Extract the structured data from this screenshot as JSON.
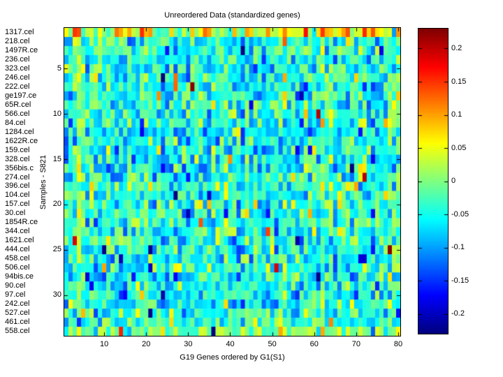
{
  "chart_data": {
    "type": "heatmap",
    "title": "Unreordered Data (standardized genes)",
    "xlabel": "G19 Genes ordered by G1(S1)",
    "ylabel": "Samples - S821",
    "rows": 34,
    "cols": 80,
    "row_labels": [
      "1317.cel",
      "218.cel",
      "1497R.ce",
      "236.cel",
      "323.cel",
      "246.cel",
      "222.cel",
      "ge197.ce",
      "65R.cel",
      "566.cel",
      "84.cel",
      "1284.cel",
      "1622R.ce",
      "159.cel",
      "328.cel",
      "356bis.c",
      "274.cel",
      "396.cel",
      "104.cel",
      "157.cel",
      "30.cel",
      "1854R.ce",
      "344.cel",
      "1621.cel",
      "444.cel",
      "458.cel",
      "506.cel",
      "94bis.ce",
      "90.cel",
      "97.cel",
      "242.cel",
      "527.cel",
      "461.cel",
      "558.cel"
    ],
    "x_ticks": [
      10,
      20,
      30,
      40,
      50,
      60,
      70,
      80
    ],
    "y_ticks": [
      5,
      10,
      15,
      20,
      25,
      30
    ],
    "colormap": "jet",
    "clim": [
      -0.23,
      0.23
    ],
    "grid": false,
    "colorbar": {
      "position": "right",
      "tick_labels": [
        "0.2",
        "0.15",
        "0.1",
        "0.05",
        "0",
        "-0.05",
        "-0.1",
        "-0.15",
        "-0.2"
      ],
      "tick_values": [
        0.2,
        0.15,
        0.1,
        0.05,
        0,
        -0.05,
        -0.1,
        -0.15,
        -0.2
      ]
    },
    "generation": {
      "seed": 20090821,
      "base_mean": -0.045,
      "base_sd": 0.045,
      "outlier_prob": 0.035,
      "outlier_sd": 0.1,
      "col_bias_sd": 0.013,
      "row_bias_sd": 0.008,
      "row_bias_overrides": {
        "0": 0.075,
        "33": 0.028
      },
      "col_bias_overrides": {
        "79": 0.035
      }
    }
  }
}
